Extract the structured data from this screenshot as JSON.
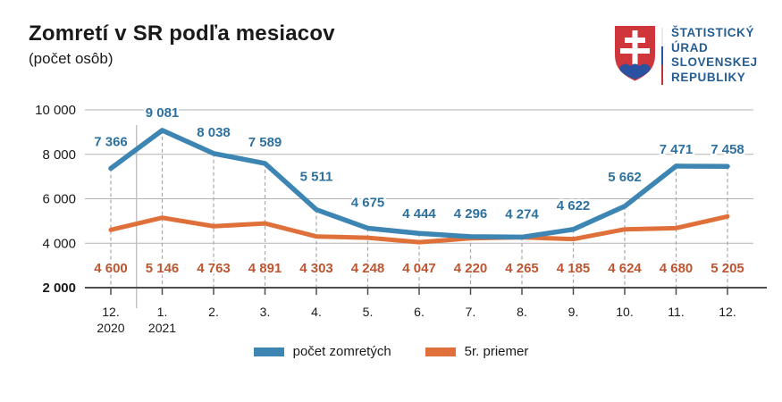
{
  "header": {
    "title": "Zomretí v SR podľa mesiacov",
    "subtitle": "(počet osôb)"
  },
  "logo": {
    "name": "statisticky-urad-slovenskej-republiky",
    "lines": [
      "ŠTATISTICKÝ",
      "ÚRAD",
      "SLOVENSKEJ",
      "REPUBLIKY"
    ],
    "text_color": "#265e93",
    "shield_red": "#ce363c",
    "shield_blue": "#2a52a0"
  },
  "chart_data": {
    "type": "line",
    "title": "Zomretí v SR podľa mesiacov",
    "subtitle": "(počet osôb)",
    "categories": [
      "12.",
      "1.",
      "2.",
      "3.",
      "4.",
      "5.",
      "6.",
      "7.",
      "8.",
      "9.",
      "10.",
      "11.",
      "12."
    ],
    "category_years": {
      "0": "2020",
      "1": "2021"
    },
    "series": [
      {
        "name": "počet zomretých",
        "color": "#3d86b4",
        "label_color": "#2e719f",
        "values": [
          7366,
          9081,
          8038,
          7589,
          5511,
          4675,
          4444,
          4296,
          4274,
          4622,
          5662,
          7471,
          7458
        ]
      },
      {
        "name": "5r. priemer",
        "color": "#e0703a",
        "label_color": "#bd5630",
        "values": [
          4600,
          5146,
          4763,
          4891,
          4303,
          4248,
          4047,
          4220,
          4265,
          4185,
          4624,
          4680,
          5205
        ]
      }
    ],
    "ylim": [
      2000,
      10000
    ],
    "yticks": [
      2000,
      4000,
      6000,
      8000,
      10000
    ],
    "grid": true,
    "legend_position": "bottom"
  }
}
